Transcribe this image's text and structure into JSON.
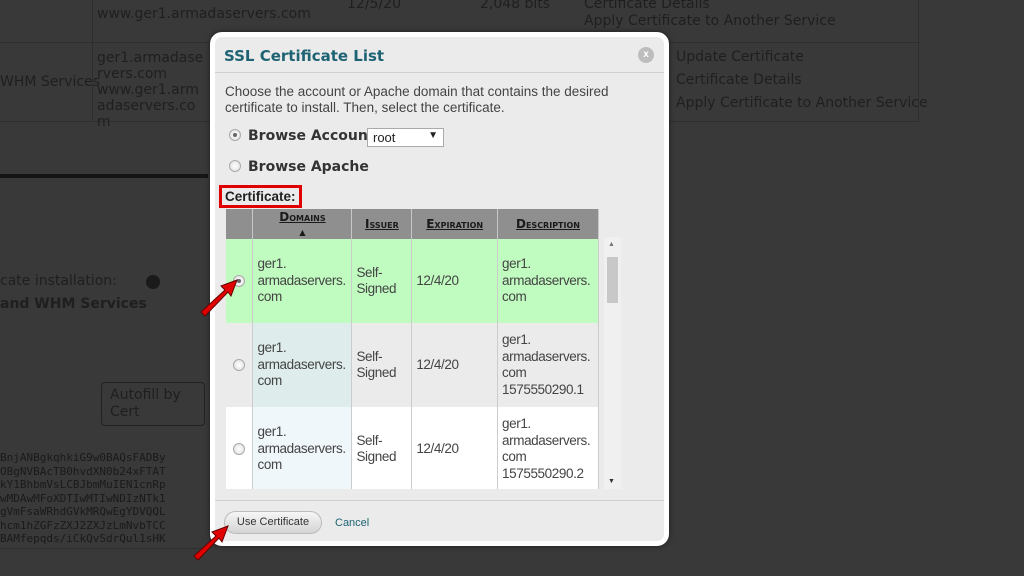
{
  "background": {
    "table_rows": [
      {
        "service": "",
        "domains": "www.ger1.armadaservers.com",
        "expiration": "12/5/20",
        "key": "2,048 bits",
        "actions": [
          "Certificate Details",
          "Apply Certificate to Another Service"
        ]
      },
      {
        "service": "WHM Services",
        "domains": "ger1.armadaservers.com\nwww.ger1.armadaservers.com",
        "actions": [
          "Update Certificate",
          "Certificate Details",
          "Apply Certificate to Another Service"
        ]
      }
    ],
    "installation_label": "cate installation:",
    "service_name": "and WHM Services",
    "autofill_button": "Autofill by Cert",
    "cert_text": [
      "BnjANBgkqhkiG9w0BAQsFADBy",
      "OBgNVBAcTB0hvdXN0b24xFTAT",
      "kY1BhbmVsLCBJbmMuIEN1cnRp",
      "wMDAwMFoXDTIwMTIwNDIzNTk1",
      "gVmFsaWRhdGVkMRQwEgYDVQQL",
      "hcm1hZGFzZXJ2ZXJzLmNvbTCC",
      "BAMfepqds/iCkQvSdrQul1sHK"
    ]
  },
  "modal": {
    "title": "SSL Certificate List",
    "close_label": "x",
    "description": "Choose the account or Apache domain that contains the desired certificate to install. Then, select the certificate.",
    "browse_account_label": "Browse Account:",
    "account_value": "root",
    "browse_apache_label": "Browse Apache",
    "certificate_label": "Certificate:",
    "columns": [
      "Domains",
      "Issuer",
      "Expiration",
      "Description"
    ],
    "rows": [
      {
        "selected": true,
        "domains": "ger1.\narmadaservers.\ncom",
        "issuer": "Self-\nSigned",
        "expiration": "12/4/20",
        "description": "ger1.\narmadaservers.\ncom"
      },
      {
        "selected": false,
        "domains": "ger1.\narmadaservers.\ncom",
        "issuer": "Self-\nSigned",
        "expiration": "12/4/20",
        "description": "ger1.\narmadaservers.\ncom\n1575550290.1"
      },
      {
        "selected": false,
        "domains": "ger1.\narmadaservers.\ncom",
        "issuer": "Self-\nSigned",
        "expiration": "12/4/20",
        "description": "ger1.\narmadaservers.\ncom\n1575550290.2"
      }
    ],
    "use_button": "Use Certificate",
    "cancel_link": "Cancel"
  },
  "colors": {
    "selected_row": "#c0fbc0",
    "highlight_box": "#e00000",
    "arrow": "#e00000",
    "title": "#1e6373"
  }
}
